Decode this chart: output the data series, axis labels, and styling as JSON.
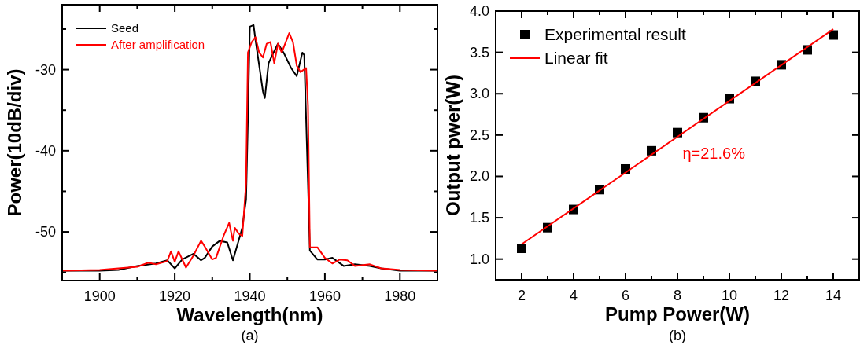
{
  "chart_data": [
    {
      "type": "line",
      "xlabel": "Wavelength(nm)",
      "ylabel": "Power(10dB/div)",
      "xlim": [
        1890,
        1990
      ],
      "ylim": [
        -56,
        -22
      ],
      "xticks": [
        {
          "value": 1890,
          "label": null
        },
        1900,
        {
          "value": 1910,
          "label": null
        },
        1920,
        {
          "value": 1930,
          "label": null
        },
        1940,
        {
          "value": 1950,
          "label": null
        },
        1960,
        {
          "value": 1970,
          "label": null
        },
        1980,
        {
          "value": 1990,
          "label": null
        }
      ],
      "yticks": [
        {
          "value": -55,
          "label": null
        },
        -50,
        {
          "value": -45,
          "label": null
        },
        -40,
        {
          "value": -35,
          "label": null
        },
        -30,
        {
          "value": -25,
          "label": null
        }
      ],
      "legend": "top left",
      "grid": false,
      "marker": "none",
      "line_style": "solid",
      "annotations": [
        "(a)"
      ],
      "series": [
        {
          "name": "Seed",
          "color": "#000000",
          "x": [
            1890,
            1900,
            1905,
            1910,
            1915,
            1918,
            1920,
            1922,
            1925,
            1927,
            1928,
            1930,
            1932,
            1934,
            1935.5,
            1937,
            1938,
            1939,
            1939.5,
            1940,
            1941,
            1941.5,
            1942.5,
            1943.5,
            1944,
            1945,
            1946,
            1947.5,
            1949,
            1951,
            1952.5,
            1954,
            1954.5,
            1955.5,
            1956,
            1958,
            1960,
            1962,
            1965,
            1968,
            1972,
            1975,
            1980,
            1990
          ],
          "values": [
            -54.8,
            -54.8,
            -54.7,
            -54.2,
            -53.9,
            -53.5,
            -54.5,
            -53.4,
            -52.7,
            -53.5,
            -53.2,
            -51.8,
            -51.1,
            -51.3,
            -53.5,
            -51.1,
            -49.5,
            -46,
            -36,
            -24.7,
            -24.5,
            -26.3,
            -29.5,
            -32.7,
            -33.5,
            -29.2,
            -28.2,
            -26.8,
            -27.9,
            -29.8,
            -30.8,
            -27.9,
            -28.2,
            -44,
            -52.3,
            -53.4,
            -53.4,
            -53.2,
            -54.2,
            -54,
            -54.2,
            -54.5,
            -54.8,
            -54.8
          ]
        },
        {
          "name": "After amplification",
          "color": "#ff0000",
          "x": [
            1890,
            1900,
            1905,
            1910,
            1913,
            1915,
            1918,
            1919,
            1920,
            1921,
            1923,
            1925,
            1927,
            1928,
            1930,
            1931,
            1933,
            1934.5,
            1935.5,
            1936,
            1937,
            1938,
            1939,
            1939.5,
            1940.5,
            1941.5,
            1942.5,
            1943.5,
            1944.5,
            1945.5,
            1946.5,
            1947.5,
            1948.5,
            1950.5,
            1951.5,
            1952.5,
            1953.5,
            1955,
            1955.5,
            1956,
            1958,
            1960,
            1962,
            1964,
            1966,
            1968,
            1972,
            1975,
            1980,
            1990
          ],
          "values": [
            -54.8,
            -54.7,
            -54.5,
            -54.3,
            -53.8,
            -54,
            -53.6,
            -52.4,
            -53.7,
            -52.4,
            -54.4,
            -52.9,
            -51.1,
            -51.8,
            -53.4,
            -53.2,
            -50.5,
            -48.9,
            -51.1,
            -49.5,
            -50.2,
            -50.5,
            -44,
            -27.9,
            -26.6,
            -26,
            -27.9,
            -28.5,
            -26.8,
            -26.6,
            -29.2,
            -26.8,
            -27.9,
            -25.5,
            -26.6,
            -29.5,
            -30.3,
            -29.8,
            -34.4,
            -51.9,
            -51.9,
            -53.2,
            -53.9,
            -53.4,
            -53.5,
            -54.2,
            -54,
            -54.5,
            -54.7,
            -54.8
          ]
        }
      ]
    },
    {
      "type": "scatter",
      "xlabel": "Pump Power(W)",
      "ylabel": "Output pwer(W)",
      "xlim": [
        1,
        15
      ],
      "ylim": [
        0.75,
        4.0
      ],
      "xticks": [
        {
          "value": 1,
          "label": null
        },
        2,
        {
          "value": 3,
          "label": null
        },
        4,
        {
          "value": 5,
          "label": null
        },
        6,
        {
          "value": 7,
          "label": null
        },
        8,
        {
          "value": 9,
          "label": null
        },
        10,
        {
          "value": 11,
          "label": null
        },
        12,
        {
          "value": 13,
          "label": null
        },
        14,
        {
          "value": 15,
          "label": null
        }
      ],
      "yticks": [
        {
          "value": 1,
          "label": "1.0"
        },
        {
          "value": 1.5,
          "label": "1.5"
        },
        {
          "value": 2,
          "label": "2.0"
        },
        {
          "value": 2.5,
          "label": "2.5"
        },
        {
          "value": 3,
          "label": "3.0"
        },
        {
          "value": 3.5,
          "label": "3.5"
        },
        {
          "value": 4,
          "label": "4.0"
        }
      ],
      "legend": "top left",
      "grid": false,
      "annotations": [
        "η=21.6%",
        "(b)"
      ],
      "series": [
        {
          "name": "Experimental result",
          "marker": "square",
          "color": "#000000",
          "x": [
            2,
            3,
            4,
            5,
            6,
            7,
            8,
            9,
            10,
            11,
            12,
            13,
            14
          ],
          "values": [
            1.13,
            1.38,
            1.6,
            1.84,
            2.09,
            2.31,
            2.53,
            2.71,
            2.94,
            3.15,
            3.35,
            3.53,
            3.71
          ]
        },
        {
          "name": "Linear fit",
          "type": "line",
          "marker": "none",
          "color": "#ff0000",
          "x": [
            2,
            14
          ],
          "values": [
            1.18,
            3.78
          ]
        }
      ]
    }
  ]
}
